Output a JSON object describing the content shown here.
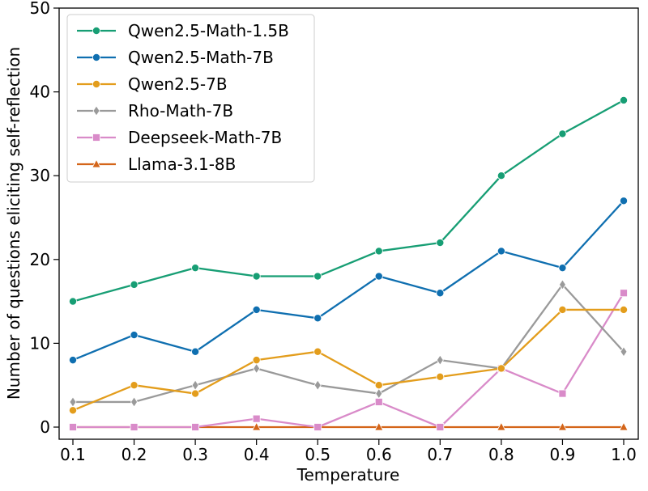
{
  "chart_data": {
    "type": "line",
    "title": "",
    "xlabel": "Temperature",
    "ylabel": "Number of questions eliciting self-reflection",
    "x": [
      0.1,
      0.2,
      0.3,
      0.4,
      0.5,
      0.6,
      0.7,
      0.8,
      0.9,
      1.0
    ],
    "x_tick_labels": [
      "0.1",
      "0.2",
      "0.3",
      "0.4",
      "0.5",
      "0.6",
      "0.7",
      "0.8",
      "0.9",
      "1.0"
    ],
    "y_ticks": [
      0,
      10,
      20,
      30,
      40,
      50
    ],
    "y_tick_labels": [
      "0",
      "10",
      "20",
      "30",
      "40",
      "50"
    ],
    "xlim": [
      0.1,
      1.0
    ],
    "ylim": [
      0,
      50
    ],
    "grid": false,
    "legend_position": "top-left",
    "series": [
      {
        "name": "Qwen2.5-Math-1.5B",
        "color": "#179e74",
        "marker": "circle",
        "values": [
          15,
          17,
          19,
          18,
          18,
          21,
          22,
          30,
          35,
          39
        ]
      },
      {
        "name": "Qwen2.5-Math-7B",
        "color": "#0f6fb0",
        "marker": "circle",
        "values": [
          8,
          11,
          9,
          14,
          13,
          18,
          16,
          21,
          19,
          27
        ]
      },
      {
        "name": "Qwen2.5-7B",
        "color": "#e39d1c",
        "marker": "circle",
        "values": [
          2,
          5,
          4,
          8,
          9,
          5,
          6,
          7,
          14,
          14
        ]
      },
      {
        "name": "Rho-Math-7B",
        "color": "#9a9a9a",
        "marker": "diamond",
        "values": [
          3,
          3,
          5,
          7,
          5,
          4,
          8,
          7,
          17,
          9
        ]
      },
      {
        "name": "Deepseek-Math-7B",
        "color": "#d98bc9",
        "marker": "square",
        "values": [
          0,
          0,
          0,
          1,
          0,
          3,
          0,
          7,
          4,
          16
        ]
      },
      {
        "name": "Llama-3.1-8B",
        "color": "#d46519",
        "marker": "triangle",
        "values": [
          0,
          0,
          0,
          0,
          0,
          0,
          0,
          0,
          0,
          0
        ]
      }
    ]
  }
}
